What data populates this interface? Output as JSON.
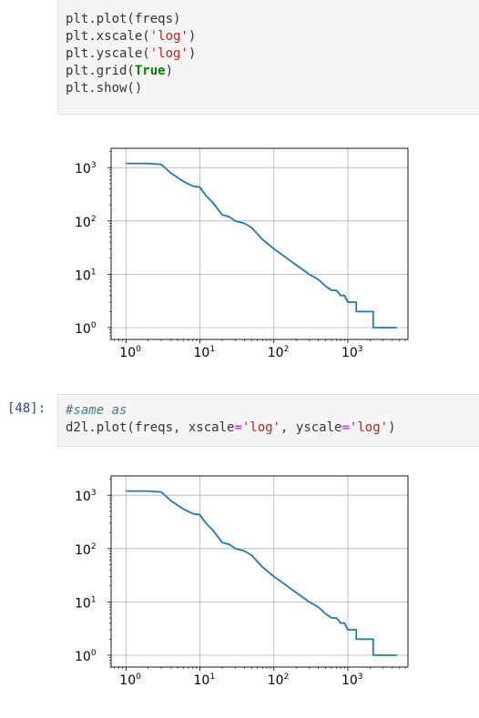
{
  "cells": [
    {
      "prompt": "",
      "code_lines": [
        [
          {
            "t": "plt.plot(freqs)",
            "c": ""
          }
        ],
        [
          {
            "t": "plt.xscale(",
            "c": ""
          },
          {
            "t": "'log'",
            "c": "str"
          },
          {
            "t": ")",
            "c": ""
          }
        ],
        [
          {
            "t": "plt.yscale(",
            "c": ""
          },
          {
            "t": "'log'",
            "c": "str"
          },
          {
            "t": ")",
            "c": ""
          }
        ],
        [
          {
            "t": "plt.grid(",
            "c": ""
          },
          {
            "t": "True",
            "c": "kw"
          },
          {
            "t": ")",
            "c": ""
          }
        ],
        [
          {
            "t": "plt.show()",
            "c": ""
          }
        ]
      ]
    },
    {
      "prompt": "[48]:",
      "code_lines": [
        [
          {
            "t": "#same as",
            "c": "cm"
          }
        ],
        [
          {
            "t": "d2l.plot(freqs, xscale",
            "c": ""
          },
          {
            "t": "=",
            "c": "eq"
          },
          {
            "t": "'log'",
            "c": "str"
          },
          {
            "t": ", yscale",
            "c": ""
          },
          {
            "t": "=",
            "c": "eq"
          },
          {
            "t": "'log'",
            "c": "str"
          },
          {
            "t": ")",
            "c": ""
          }
        ]
      ]
    }
  ],
  "chart_data": [
    {
      "type": "line",
      "xscale": "log",
      "yscale": "log",
      "grid": true,
      "xlim": [
        0.63,
        6500
      ],
      "ylim": [
        0.6,
        2300
      ],
      "xticks": [
        {
          "value": 1,
          "base": "10",
          "exp": "0"
        },
        {
          "value": 10,
          "base": "10",
          "exp": "1"
        },
        {
          "value": 100,
          "base": "10",
          "exp": "2"
        },
        {
          "value": 1000,
          "base": "10",
          "exp": "3"
        }
      ],
      "yticks": [
        {
          "value": 1,
          "base": "10",
          "exp": "0"
        },
        {
          "value": 10,
          "base": "10",
          "exp": "1"
        },
        {
          "value": 100,
          "base": "10",
          "exp": "2"
        },
        {
          "value": 1000,
          "base": "10",
          "exp": "3"
        }
      ],
      "color": "#1f77b4",
      "x": [
        1,
        2,
        3,
        4,
        5,
        6,
        8,
        10,
        12,
        15,
        20,
        25,
        30,
        40,
        50,
        70,
        100,
        150,
        200,
        300,
        400,
        500,
        600,
        700,
        800,
        900,
        1000,
        1300,
        1300,
        2200,
        2200,
        4580
      ],
      "y": [
        1200,
        1200,
        1150,
        800,
        650,
        550,
        450,
        430,
        300,
        220,
        130,
        120,
        100,
        90,
        75,
        45,
        30,
        20,
        15,
        10,
        8,
        6,
        5,
        5,
        4,
        4,
        3,
        3,
        2,
        2,
        1,
        1
      ]
    },
    {
      "type": "line",
      "xscale": "log",
      "yscale": "log",
      "grid": true,
      "xlim": [
        0.63,
        6500
      ],
      "ylim": [
        0.6,
        2300
      ],
      "xticks": [
        {
          "value": 1,
          "base": "10",
          "exp": "0"
        },
        {
          "value": 10,
          "base": "10",
          "exp": "1"
        },
        {
          "value": 100,
          "base": "10",
          "exp": "2"
        },
        {
          "value": 1000,
          "base": "10",
          "exp": "3"
        }
      ],
      "yticks": [
        {
          "value": 1,
          "base": "10",
          "exp": "0"
        },
        {
          "value": 10,
          "base": "10",
          "exp": "1"
        },
        {
          "value": 100,
          "base": "10",
          "exp": "2"
        },
        {
          "value": 1000,
          "base": "10",
          "exp": "3"
        }
      ],
      "color": "#1f77b4",
      "x": [
        1,
        2,
        3,
        4,
        5,
        6,
        8,
        10,
        12,
        15,
        20,
        25,
        30,
        40,
        50,
        70,
        100,
        150,
        200,
        300,
        400,
        500,
        600,
        700,
        800,
        900,
        1000,
        1300,
        1300,
        2200,
        2200,
        4580
      ],
      "y": [
        1200,
        1200,
        1150,
        800,
        650,
        550,
        450,
        430,
        300,
        220,
        130,
        120,
        100,
        90,
        75,
        45,
        30,
        20,
        15,
        10,
        8,
        6,
        5,
        5,
        4,
        4,
        3,
        3,
        2,
        2,
        1,
        1
      ]
    }
  ]
}
